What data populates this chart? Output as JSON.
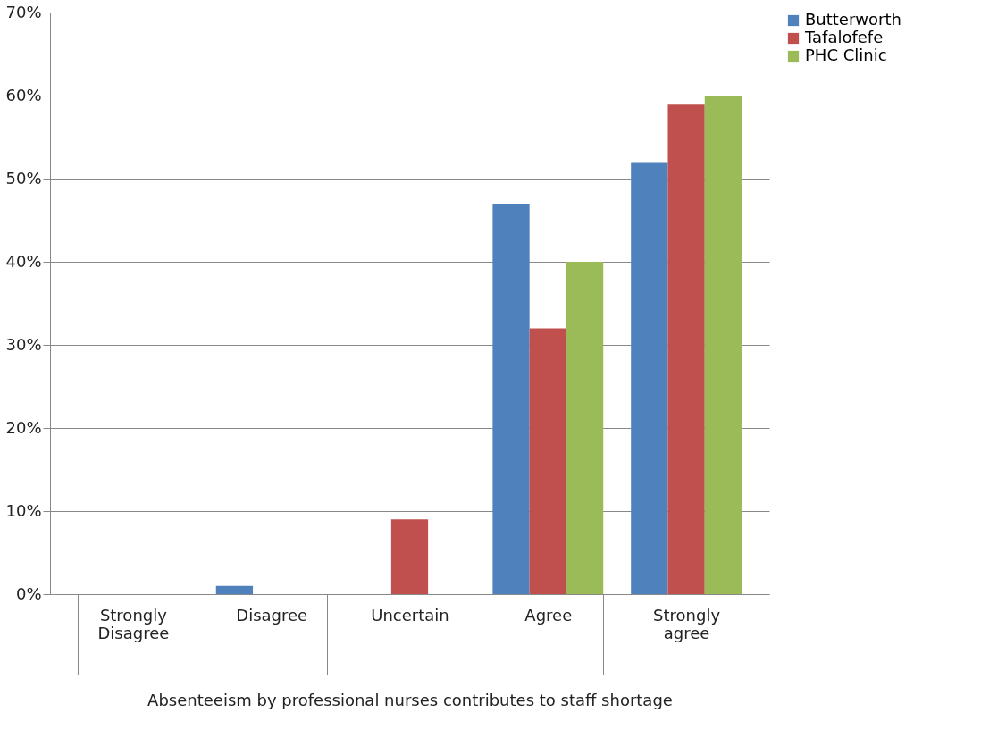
{
  "chart_data": {
    "type": "bar",
    "xlabel": "Absenteeism by professional nurses contributes to staff shortage",
    "categories": [
      "Strongly Disagree",
      "Disagree",
      "Uncertain",
      "Agree",
      "Strongly agree"
    ],
    "series": [
      {
        "name": "Butterworth",
        "color": "#4f81bd",
        "values": [
          0,
          1,
          0,
          47,
          52
        ]
      },
      {
        "name": "Tafalofefe",
        "color": "#c0504d",
        "values": [
          0,
          0,
          9,
          32,
          59
        ]
      },
      {
        "name": "PHC Clinic",
        "color": "#9bbb59",
        "values": [
          0,
          0,
          0,
          40,
          60
        ]
      }
    ],
    "ylim": [
      0,
      70
    ],
    "yticks": [
      {
        "value": 0,
        "label": "0%"
      },
      {
        "value": 10,
        "label": "10%"
      },
      {
        "value": 20,
        "label": "20%"
      },
      {
        "value": 30,
        "label": "30%"
      },
      {
        "value": 40,
        "label": "40%"
      },
      {
        "value": 50,
        "label": "50%"
      },
      {
        "value": 60,
        "label": "60%"
      },
      {
        "value": 70,
        "label": "70%"
      }
    ],
    "grid": "y",
    "legend": "right"
  }
}
